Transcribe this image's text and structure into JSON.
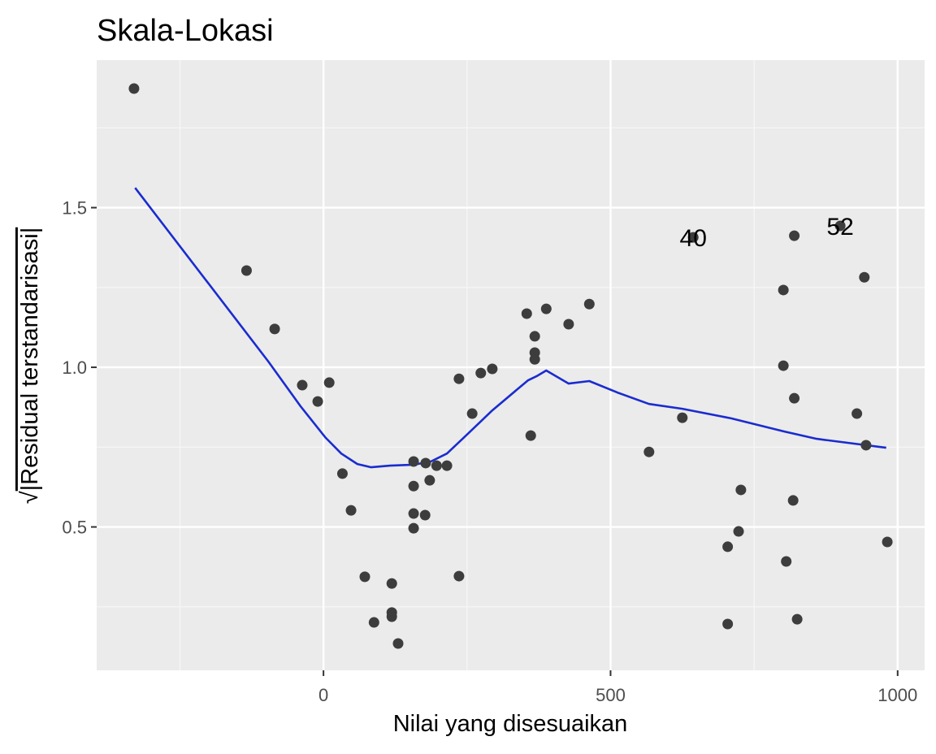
{
  "chart_data": {
    "type": "scatter",
    "title": "Skala-Lokasi",
    "xlabel": "Nilai yang disesuaikan",
    "ylabel": "√|Residual terstandarisasi|",
    "ylabel_sqrt": "√",
    "ylabel_text": "|Residual terstandarisasi|",
    "xlim": [
      -395,
      1047
    ],
    "ylim": [
      0.051,
      1.962
    ],
    "x_ticks": [
      0,
      500,
      1000
    ],
    "x_tick_labels": [
      "0",
      "500",
      "1000"
    ],
    "x_minor_ticks": [
      -250,
      250,
      750
    ],
    "y_ticks": [
      0.5,
      1.0,
      1.5
    ],
    "y_tick_labels": [
      "0.5",
      "1.0",
      "1.5"
    ],
    "y_minor_ticks": [
      0.25,
      0.75,
      1.25,
      1.75
    ],
    "grid": true,
    "legend": "none",
    "points": [
      {
        "x": -330,
        "y": 1.873
      },
      {
        "x": -134,
        "y": 1.303
      },
      {
        "x": -85,
        "y": 1.12
      },
      {
        "x": -37,
        "y": 0.944
      },
      {
        "x": -10,
        "y": 0.893
      },
      {
        "x": 10,
        "y": 0.952
      },
      {
        "x": 33,
        "y": 0.667
      },
      {
        "x": 48,
        "y": 0.552
      },
      {
        "x": 72,
        "y": 0.344
      },
      {
        "x": 88,
        "y": 0.201
      },
      {
        "x": 119,
        "y": 0.323
      },
      {
        "x": 119,
        "y": 0.232
      },
      {
        "x": 119,
        "y": 0.219
      },
      {
        "x": 130,
        "y": 0.135
      },
      {
        "x": 157,
        "y": 0.705
      },
      {
        "x": 157,
        "y": 0.628
      },
      {
        "x": 157,
        "y": 0.542
      },
      {
        "x": 157,
        "y": 0.496
      },
      {
        "x": 178,
        "y": 0.7
      },
      {
        "x": 177,
        "y": 0.537
      },
      {
        "x": 185,
        "y": 0.646
      },
      {
        "x": 197,
        "y": 0.692
      },
      {
        "x": 215,
        "y": 0.692
      },
      {
        "x": 236,
        "y": 0.346
      },
      {
        "x": 236,
        "y": 0.964
      },
      {
        "x": 259,
        "y": 0.855
      },
      {
        "x": 274,
        "y": 0.982
      },
      {
        "x": 294,
        "y": 0.995
      },
      {
        "x": 354,
        "y": 1.168
      },
      {
        "x": 388,
        "y": 1.183
      },
      {
        "x": 368,
        "y": 1.097
      },
      {
        "x": 368,
        "y": 1.046
      },
      {
        "x": 368,
        "y": 1.025
      },
      {
        "x": 361,
        "y": 0.786
      },
      {
        "x": 427,
        "y": 1.135
      },
      {
        "x": 463,
        "y": 1.198
      },
      {
        "x": 567,
        "y": 0.735
      },
      {
        "x": 625,
        "y": 0.842
      },
      {
        "x": 644,
        "y": 1.407,
        "label": "40"
      },
      {
        "x": 727,
        "y": 0.616
      },
      {
        "x": 704,
        "y": 0.438
      },
      {
        "x": 723,
        "y": 0.486
      },
      {
        "x": 704,
        "y": 0.196
      },
      {
        "x": 801,
        "y": 1.242
      },
      {
        "x": 801,
        "y": 1.005
      },
      {
        "x": 806,
        "y": 0.392
      },
      {
        "x": 818,
        "y": 0.583
      },
      {
        "x": 820,
        "y": 1.412
      },
      {
        "x": 820,
        "y": 0.903
      },
      {
        "x": 825,
        "y": 0.211
      },
      {
        "x": 900,
        "y": 1.443,
        "label": "52"
      },
      {
        "x": 929,
        "y": 0.855
      },
      {
        "x": 942,
        "y": 1.282
      },
      {
        "x": 945,
        "y": 0.756
      },
      {
        "x": 982,
        "y": 0.453
      }
    ],
    "smooth_line": {
      "name": "loess",
      "x": [
        -328,
        -96,
        -40,
        3,
        31,
        59,
        83,
        116,
        158,
        187,
        215,
        248,
        294,
        356,
        371,
        388,
        427,
        463,
        512,
        567,
        625,
        710,
        802,
        859,
        980
      ],
      "y": [
        1.562,
        1.018,
        0.878,
        0.781,
        0.73,
        0.697,
        0.687,
        0.692,
        0.695,
        0.705,
        0.73,
        0.786,
        0.865,
        0.959,
        0.972,
        0.99,
        0.949,
        0.957,
        0.921,
        0.885,
        0.87,
        0.84,
        0.799,
        0.776,
        0.748
      ]
    },
    "colors": {
      "panel_background": "#ebebeb",
      "grid_major": "#ffffff",
      "grid_minor": "#f7f7f7",
      "point": "#3d3d3d",
      "smooth_line": "#1a2ccf",
      "tick_label": "#4d4d4d"
    }
  }
}
